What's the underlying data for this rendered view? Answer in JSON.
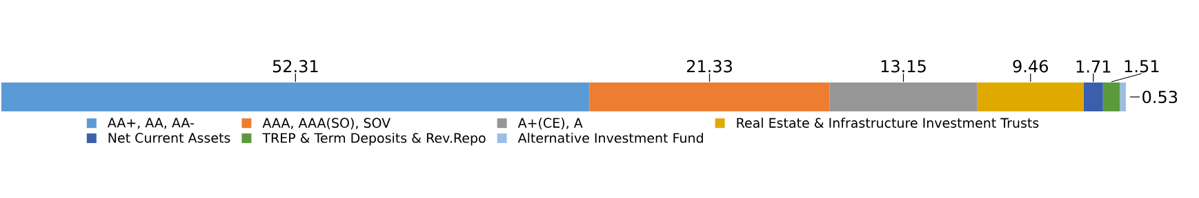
{
  "chart_data": {
    "type": "bar",
    "orientation": "horizontal",
    "stacked": true,
    "categories": [
      null
    ],
    "xlim": [
      0,
      100
    ],
    "data_labels": true,
    "legend": "bottom",
    "series": [
      {
        "name": "AA+, AA, AA-",
        "color": "#5b9bd5",
        "values": [
          52.31
        ]
      },
      {
        "name": "AAA, AAA(SO), SOV",
        "color": "#ed7d31",
        "values": [
          21.33
        ]
      },
      {
        "name": "A+(CE), A",
        "color": "#969696",
        "values": [
          13.15
        ]
      },
      {
        "name": "Real Estate & Infrastructure Investment Trusts",
        "color": "#e0a900",
        "values": [
          9.46
        ]
      },
      {
        "name": "Net Current Assets",
        "color": "#3a5fad",
        "values": [
          1.71
        ]
      },
      {
        "name": "TREP & Term Deposits & Rev.Repo",
        "color": "#5b9a3c",
        "values": [
          1.51
        ]
      },
      {
        "name": "Alternative Investment Fund",
        "color": "#9dbde6",
        "values": [
          0.53
        ]
      }
    ]
  }
}
